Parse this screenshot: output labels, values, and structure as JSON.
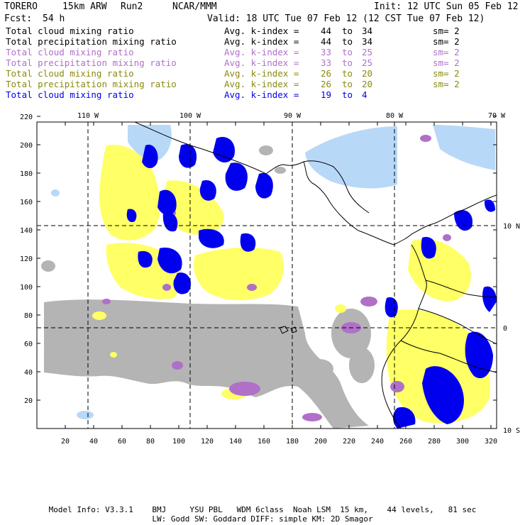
{
  "header": {
    "model": "TORERO",
    "resolution": "15km ARW",
    "run": "Run2",
    "org": "NCAR/MMM",
    "init": "Init: 12 UTC Sun 05 Feb 12",
    "fcst_label": "Fcst:",
    "fcst_value": "54 h",
    "valid": "Valid: 18 UTC Tue 07 Feb 12 (12 CST Tue 07 Feb 12)"
  },
  "legend": [
    {
      "field": "Total cloud mixing ratio",
      "index_label": "Avg. k-index =",
      "from": "44",
      "to_word": "to",
      "to": "34",
      "sm": "sm= 2",
      "color": "#000000"
    },
    {
      "field": "Total precipitation mixing ratio",
      "index_label": "Avg. k-index =",
      "from": "44",
      "to_word": "to",
      "to": "34",
      "sm": "sm= 2",
      "color": "#000000"
    },
    {
      "field": "Total cloud mixing ratio",
      "index_label": "Avg. k-index =",
      "from": "33",
      "to_word": "to",
      "to": "25",
      "sm": "sm= 2",
      "color": "#b070c8"
    },
    {
      "field": "Total precipitation mixing ratio",
      "index_label": "Avg. k-index =",
      "from": "33",
      "to_word": "to",
      "to": "25",
      "sm": "sm= 2",
      "color": "#b070c8"
    },
    {
      "field": "Total cloud mixing ratio",
      "index_label": "Avg. k-index =",
      "from": "26",
      "to_word": "to",
      "to": "20",
      "sm": "sm= 2",
      "color": "#8a8a10"
    },
    {
      "field": "Total precipitation mixing ratio",
      "index_label": "Avg. k-index =",
      "from": "26",
      "to_word": "to",
      "to": "20",
      "sm": "sm= 2",
      "color": "#8a8a10"
    },
    {
      "field": "Total cloud mixing ratio",
      "index_label": "Avg. k-index =",
      "from": "19",
      "to_word": "to",
      "to": "4",
      "sm": "",
      "color": "#0000ee"
    }
  ],
  "map": {
    "longitude_labels": [
      "110 W",
      "100 W",
      "90 W",
      "80 W",
      "70 W"
    ],
    "latitude_labels": [
      "10 N",
      "0",
      "10 S"
    ],
    "x_ticks": [
      "20",
      "40",
      "60",
      "80",
      "100",
      "120",
      "140",
      "160",
      "180",
      "200",
      "220",
      "240",
      "260",
      "280",
      "300",
      "320"
    ],
    "y_ticks": [
      "20",
      "40",
      "60",
      "80",
      "100",
      "120",
      "140",
      "160",
      "180",
      "200",
      "220"
    ],
    "colors": {
      "gray": "#b4b4b4",
      "purple": "#b070c8",
      "yellow": "#ffff66",
      "blue": "#0000ee",
      "light_blue": "#b8d8f8"
    }
  },
  "footer": {
    "line1": "Model Info: V3.3.1    BMJ     YSU PBL   WDM 6class  Noah LSM  15 km,    44 levels,   81 sec",
    "line2": "LW: Godd SW: Goddard DIFF: simple KM: 2D Smagor"
  }
}
